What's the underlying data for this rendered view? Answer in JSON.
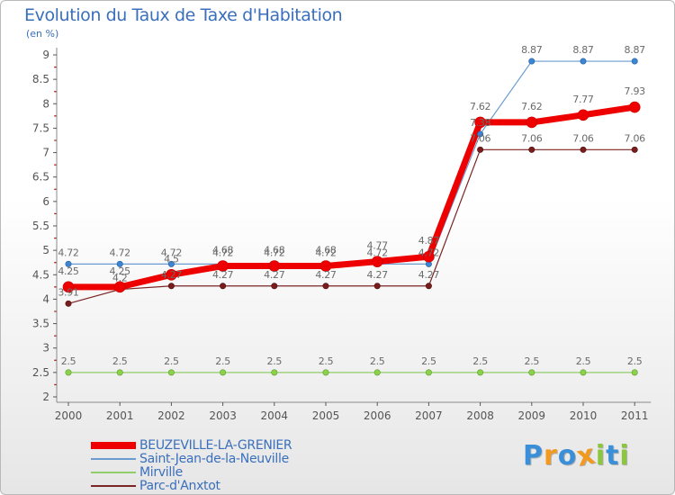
{
  "header": {
    "title": "Evolution du Taux de Taxe d'Habitation",
    "unit": "(en %)"
  },
  "logo": {
    "letters": [
      "P",
      "r",
      "o",
      "x",
      "i",
      "t",
      "i"
    ],
    "colors": [
      "#3a8fd8",
      "#f29a1f",
      "#3a8fd8",
      "#f29a1f",
      "#8cc63f",
      "#3a8fd8",
      "#8cc63f"
    ]
  },
  "chart_data": {
    "type": "line",
    "title": "Evolution du Taux de Taxe d'Habitation",
    "ylabel": "(en %)",
    "xlabel": "",
    "x": [
      "2000",
      "2001",
      "2002",
      "2003",
      "2004",
      "2005",
      "2006",
      "2007",
      "2008",
      "2009",
      "2010",
      "2011"
    ],
    "ylim": [
      2,
      9
    ],
    "yticks": [
      "2",
      "2.5",
      "3",
      "3.5",
      "4",
      "4.5",
      "5",
      "5.5",
      "6",
      "6.5",
      "7",
      "7.5",
      "8",
      "8.5",
      "9"
    ],
    "grid": false,
    "legend_position": "bottom-left",
    "series": [
      {
        "name": "BEUZEVILLE-LA-GRENIER",
        "color": "#ee0000",
        "values": [
          4.25,
          4.25,
          4.5,
          4.68,
          4.68,
          4.68,
          4.77,
          4.87,
          7.62,
          7.62,
          7.77,
          7.93
        ],
        "labels": [
          "4.25",
          "4.25",
          "4.5",
          "4.68",
          "4.68",
          "4.68",
          "4.77",
          "4.87",
          "7.62",
          "7.62",
          "7.77",
          "7.93"
        ]
      },
      {
        "name": "Saint-Jean-de-la-Neuville",
        "color": "#6a9cd0",
        "values": [
          4.72,
          4.72,
          4.72,
          4.72,
          4.72,
          4.72,
          4.72,
          4.72,
          7.38,
          8.87,
          8.87,
          8.87
        ],
        "labels": [
          "4.72",
          "4.72",
          "4.72",
          "4.72",
          "4.72",
          "4.72",
          "4.72",
          "4.72",
          "7.38",
          "8.87",
          "8.87",
          "8.87"
        ]
      },
      {
        "name": "Mirville",
        "color": "#8fce6a",
        "values": [
          2.5,
          2.5,
          2.5,
          2.5,
          2.5,
          2.5,
          2.5,
          2.5,
          2.5,
          2.5,
          2.5,
          2.5
        ],
        "labels": [
          "2.5",
          "2.5",
          "2.5",
          "2.5",
          "2.5",
          "2.5",
          "2.5",
          "2.5",
          "2.5",
          "2.5",
          "2.5",
          "2.5"
        ]
      },
      {
        "name": "Parc-d'Anxtot",
        "color": "#7a2424",
        "values": [
          3.91,
          4.2,
          4.27,
          4.27,
          4.27,
          4.27,
          4.27,
          4.27,
          7.06,
          7.06,
          7.06,
          7.06
        ],
        "labels": [
          "3.91",
          "4.2",
          "4.27",
          "4.27",
          "4.27",
          "4.27",
          "4.27",
          "4.27",
          "7.06",
          "7.06",
          "7.06",
          "7.06"
        ]
      }
    ]
  }
}
